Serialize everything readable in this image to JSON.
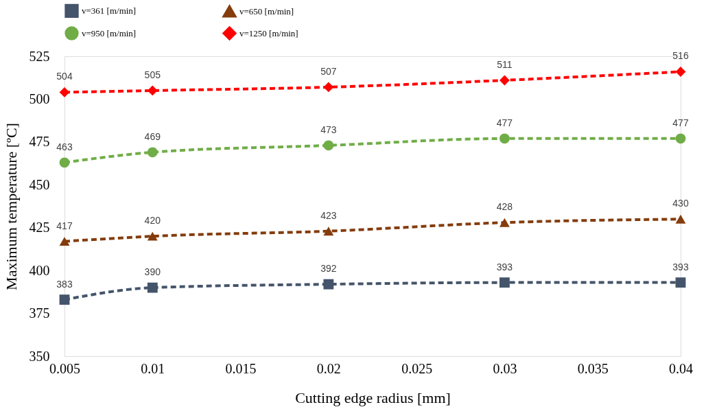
{
  "chart_data": {
    "type": "line",
    "xlabel": "Cutting edge radius [mm]",
    "ylabel": "Maximum temperature [ºC]",
    "x": [
      0.005,
      0.01,
      0.02,
      0.03,
      0.04
    ],
    "series": [
      {
        "name": "v=361 [m/min]",
        "color": "#44546a",
        "marker": "square",
        "values": [
          383,
          390,
          392,
          393,
          393
        ]
      },
      {
        "name": "v=650 [m/min]",
        "color": "#843c0c",
        "marker": "triangle",
        "values": [
          417,
          420,
          423,
          428,
          430
        ]
      },
      {
        "name": "v=950 [m/min]",
        "color": "#70ad47",
        "marker": "circle",
        "values": [
          463,
          469,
          473,
          477,
          477
        ]
      },
      {
        "name": "v=1250 [m/min]",
        "color": "#ff0000",
        "marker": "diamond",
        "values": [
          504,
          505,
          507,
          511,
          516
        ]
      }
    ],
    "xlim": [
      0.005,
      0.04
    ],
    "xticks": [
      0.005,
      {
        "value": 0.01,
        "label": "0.01"
      },
      0.015,
      {
        "value": 0.02,
        "label": "0.02"
      },
      0.025,
      {
        "value": 0.03,
        "label": "0.03"
      },
      0.035,
      {
        "value": 0.04,
        "label": "0.04"
      }
    ],
    "ylim": [
      350,
      525
    ],
    "yticks": [
      350,
      375,
      400,
      425,
      450,
      475,
      500,
      525
    ],
    "line_style": "dashed",
    "data_labels": true,
    "grid": false,
    "legend": "top"
  }
}
